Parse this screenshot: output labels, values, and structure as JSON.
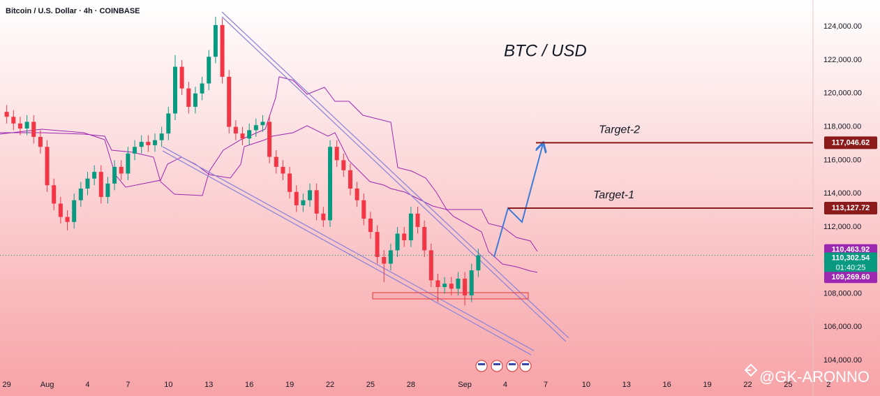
{
  "chart_data": {
    "type": "candlestick",
    "title": "Bitcoin / U.S. Dollar · 4h · COINBASE",
    "annotation": "BTC / USD",
    "watermark": "@GK-ARONNO",
    "x": [
      0,
      0.5,
      1,
      1.5,
      2,
      2.5,
      3,
      3.5,
      4,
      4.5,
      5,
      5.5,
      6,
      6.5,
      7,
      7.5,
      8,
      8.5,
      9,
      9.5,
      10,
      10.5,
      11,
      11.5,
      12,
      12.5,
      13,
      13.5,
      14,
      14.5,
      15,
      15.5,
      16,
      16.5,
      17,
      17.5,
      18,
      18.5,
      19,
      19.5,
      20,
      20.5,
      21,
      21.5,
      22,
      22.5,
      23,
      23.5,
      24,
      24.5,
      25,
      25.5,
      26,
      26.5,
      27,
      27.5,
      28,
      28.5,
      29,
      29.5,
      30,
      30.5,
      31,
      31.5,
      32,
      32.5,
      33,
      33.5,
      34,
      34.5,
      35
    ],
    "open": [
      118900,
      118600,
      118200,
      117900,
      118300,
      117400,
      116800,
      114500,
      113400,
      112600,
      112300,
      113600,
      114300,
      114900,
      115300,
      113800,
      114600,
      115600,
      115200,
      116400,
      116800,
      117100,
      116900,
      117200,
      117600,
      118800,
      121600,
      120300,
      119200,
      120000,
      120600,
      122200,
      124100,
      121000,
      118000,
      117600,
      117300,
      117800,
      118100,
      118300,
      116200,
      115600,
      115200,
      114100,
      113300,
      113600,
      114200,
      112800,
      112400,
      116800,
      116000,
      115400,
      114300,
      113600,
      112500,
      111700,
      110200,
      109800,
      110600,
      111600,
      111200,
      112800,
      112000,
      110600,
      108800,
      108400,
      108600,
      108300,
      108900,
      107900,
      109400
    ],
    "high": [
      119300,
      119000,
      118600,
      118700,
      118700,
      117800,
      117200,
      114900,
      113800,
      113000,
      114000,
      114700,
      115300,
      115700,
      115700,
      115000,
      116000,
      116000,
      116800,
      117200,
      117500,
      117500,
      117600,
      118000,
      119200,
      122300,
      122000,
      120700,
      120400,
      121000,
      122600,
      124600,
      124500,
      121400,
      118400,
      118000,
      118200,
      118500,
      118700,
      118700,
      116600,
      116000,
      115600,
      114500,
      114000,
      114600,
      114600,
      113200,
      117200,
      117200,
      116400,
      115800,
      114700,
      114000,
      112900,
      112100,
      110600,
      111000,
      112000,
      112000,
      113200,
      113200,
      112400,
      111000,
      109200,
      109000,
      109000,
      109300,
      109300,
      109800,
      110700
    ],
    "low": [
      118200,
      117800,
      117500,
      117500,
      117000,
      116400,
      114100,
      113000,
      112200,
      111800,
      111900,
      113200,
      113900,
      114500,
      113400,
      113400,
      114200,
      114800,
      114800,
      116000,
      116400,
      116500,
      116500,
      116800,
      117200,
      118400,
      119900,
      118800,
      118800,
      119600,
      120200,
      121800,
      120600,
      117600,
      117200,
      116900,
      116900,
      117400,
      117700,
      115800,
      115200,
      114800,
      113700,
      112900,
      112900,
      113200,
      112400,
      112000,
      112000,
      115600,
      115000,
      113900,
      113200,
      112100,
      111300,
      109800,
      108700,
      109400,
      110200,
      110800,
      110800,
      111600,
      110200,
      108400,
      107500,
      108000,
      107900,
      107900,
      107300,
      107500,
      109000
    ],
    "close": [
      118600,
      118200,
      117900,
      118300,
      117400,
      116800,
      114500,
      113400,
      112600,
      112300,
      113600,
      114300,
      114900,
      115300,
      113800,
      114600,
      115600,
      115200,
      116400,
      116800,
      117100,
      116900,
      117200,
      117600,
      118800,
      121600,
      120300,
      119200,
      120000,
      120600,
      122200,
      124100,
      121000,
      118000,
      117600,
      117300,
      117800,
      118100,
      118300,
      116200,
      115600,
      115200,
      114100,
      113300,
      113600,
      114200,
      112800,
      112400,
      116800,
      116000,
      115400,
      114300,
      113600,
      112500,
      111700,
      110200,
      109800,
      110600,
      111600,
      111200,
      112800,
      112000,
      110600,
      108800,
      108400,
      108600,
      108300,
      108900,
      107900,
      109400,
      110300
    ],
    "up_color": "#089981",
    "down_color": "#f23645",
    "xlim": [
      -0.5,
      61.5
    ],
    "xticks": [
      {
        "value": 0,
        "label": "29"
      },
      {
        "value": 3,
        "label": "Aug"
      },
      {
        "value": 6,
        "label": "4"
      },
      {
        "value": 9,
        "label": "7"
      },
      {
        "value": 12,
        "label": "10"
      },
      {
        "value": 15,
        "label": "13"
      },
      {
        "value": 18,
        "label": "16"
      },
      {
        "value": 21,
        "label": "19"
      },
      {
        "value": 24,
        "label": "22"
      },
      {
        "value": 27,
        "label": "25"
      },
      {
        "value": 30,
        "label": "28"
      },
      {
        "value": 34,
        "label": "Sep"
      },
      {
        "value": 37,
        "label": "4"
      },
      {
        "value": 40,
        "label": "7"
      },
      {
        "value": 43,
        "label": "10"
      },
      {
        "value": 46,
        "label": "13"
      },
      {
        "value": 49,
        "label": "16"
      },
      {
        "value": 52,
        "label": "19"
      },
      {
        "value": 55,
        "label": "22"
      },
      {
        "value": 58,
        "label": "25"
      },
      {
        "value": 61,
        "label": "2"
      }
    ],
    "ylim": [
      103000,
      125600
    ],
    "yticks": [
      {
        "value": 104000,
        "label": "104,000.00"
      },
      {
        "value": 106000,
        "label": "106,000.00"
      },
      {
        "value": 108000,
        "label": "108,000.00"
      },
      {
        "value": 110000,
        "label": "110,000.00"
      },
      {
        "value": 112000,
        "label": "112,000.00"
      },
      {
        "value": 114000,
        "label": "114,000.00"
      },
      {
        "value": 116000,
        "label": "116,000.00"
      },
      {
        "value": 118000,
        "label": "118,000.00"
      },
      {
        "value": 120000,
        "label": "120,000.00"
      },
      {
        "value": 122000,
        "label": "122,000.00"
      },
      {
        "value": 124000,
        "label": "124,000.00"
      }
    ],
    "levels": [
      {
        "name": "Target-1",
        "value": 113127.72,
        "label": "113,127.72",
        "color": "#8b1a1a"
      },
      {
        "name": "Target-2",
        "value": 117046.62,
        "label": "117,046.62",
        "color": "#8b1a1a"
      }
    ],
    "price_labels": [
      {
        "value": 110463.92,
        "label": "110,463.92",
        "color": "#9c27b0"
      },
      {
        "value": 110302.54,
        "label": "110,302.54",
        "color": "#089981",
        "countdown": "01:40:25"
      },
      {
        "value": 109269.6,
        "label": "109,269.60",
        "color": "#9c27b0"
      }
    ]
  }
}
